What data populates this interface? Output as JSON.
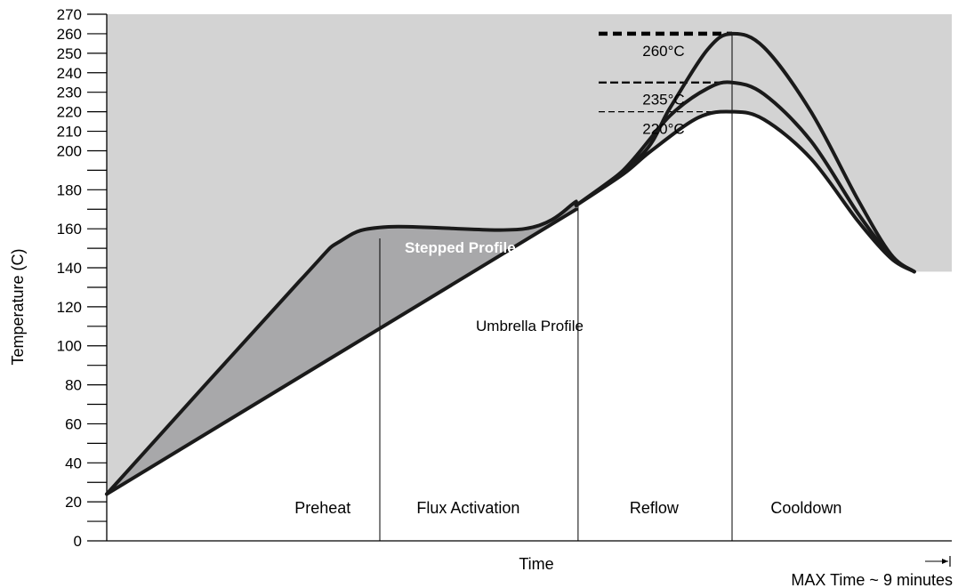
{
  "chart_data": {
    "type": "line",
    "xlabel": "Time",
    "ylabel": "Temperature (C)",
    "ylim": [
      0,
      270
    ],
    "xlim": [
      0,
      9
    ],
    "y_ticks_labeled": [
      0,
      20,
      40,
      60,
      80,
      100,
      120,
      140,
      160,
      180,
      200,
      210,
      220,
      230,
      240,
      250,
      260,
      270
    ],
    "y_ticks_minor": [
      10,
      30,
      50,
      70,
      90,
      110,
      130,
      150,
      170,
      190
    ],
    "grid": false,
    "max_time_label": "MAX Time ~ 9 minutes",
    "phase_boundaries": [
      5.02,
      6.66
    ],
    "phases": [
      {
        "label": "Preheat",
        "x": 2.3
      },
      {
        "label": "Flux Activation",
        "x": 3.85
      },
      {
        "label": "Reflow",
        "x": 5.83
      },
      {
        "label": "Cooldown",
        "x": 7.45
      }
    ],
    "peak_time": 6.66,
    "peaks": [
      {
        "label": "260°C",
        "value": 260
      },
      {
        "label": "235°C",
        "value": 235
      },
      {
        "label": "220°C",
        "value": 220
      }
    ],
    "annotations": {
      "stepped": "Stepped Profile",
      "umbrella": "Umbrella Profile"
    },
    "series": [
      {
        "name": "Stepped Profile",
        "points": [
          [
            0,
            24
          ],
          [
            2.05,
            133
          ],
          [
            2.5,
            154
          ],
          [
            3.0,
            161
          ],
          [
            4.45,
            160
          ],
          [
            5.0,
            174
          ]
        ]
      },
      {
        "name": "Umbrella Profile",
        "points": [
          [
            0,
            24
          ],
          [
            5.0,
            170
          ]
        ]
      },
      {
        "name": "260°C",
        "points": [
          [
            5.0,
            172
          ],
          [
            5.7,
            198
          ],
          [
            6.0,
            222
          ],
          [
            6.4,
            252
          ],
          [
            6.66,
            260
          ],
          [
            7.0,
            253
          ],
          [
            7.5,
            220
          ],
          [
            8.0,
            175
          ],
          [
            8.35,
            147
          ],
          [
            8.6,
            138
          ]
        ]
      },
      {
        "name": "235°C",
        "points": [
          [
            5.0,
            172
          ],
          [
            5.5,
            190
          ],
          [
            6.0,
            218
          ],
          [
            6.4,
            232
          ],
          [
            6.66,
            235
          ],
          [
            7.0,
            229
          ],
          [
            7.5,
            205
          ],
          [
            8.0,
            168
          ],
          [
            8.35,
            146
          ],
          [
            8.6,
            138
          ]
        ]
      },
      {
        "name": "220°C",
        "points": [
          [
            5.0,
            172
          ],
          [
            5.5,
            188
          ],
          [
            5.8,
            200
          ],
          [
            6.3,
            217
          ],
          [
            6.66,
            220
          ],
          [
            7.0,
            216
          ],
          [
            7.5,
            196
          ],
          [
            8.0,
            164
          ],
          [
            8.35,
            145
          ],
          [
            8.6,
            138
          ]
        ]
      }
    ],
    "colors": {
      "outer_fill": "#d3d3d3",
      "band_fill": "#a8a8aa",
      "line": "#1a1a1a"
    }
  }
}
